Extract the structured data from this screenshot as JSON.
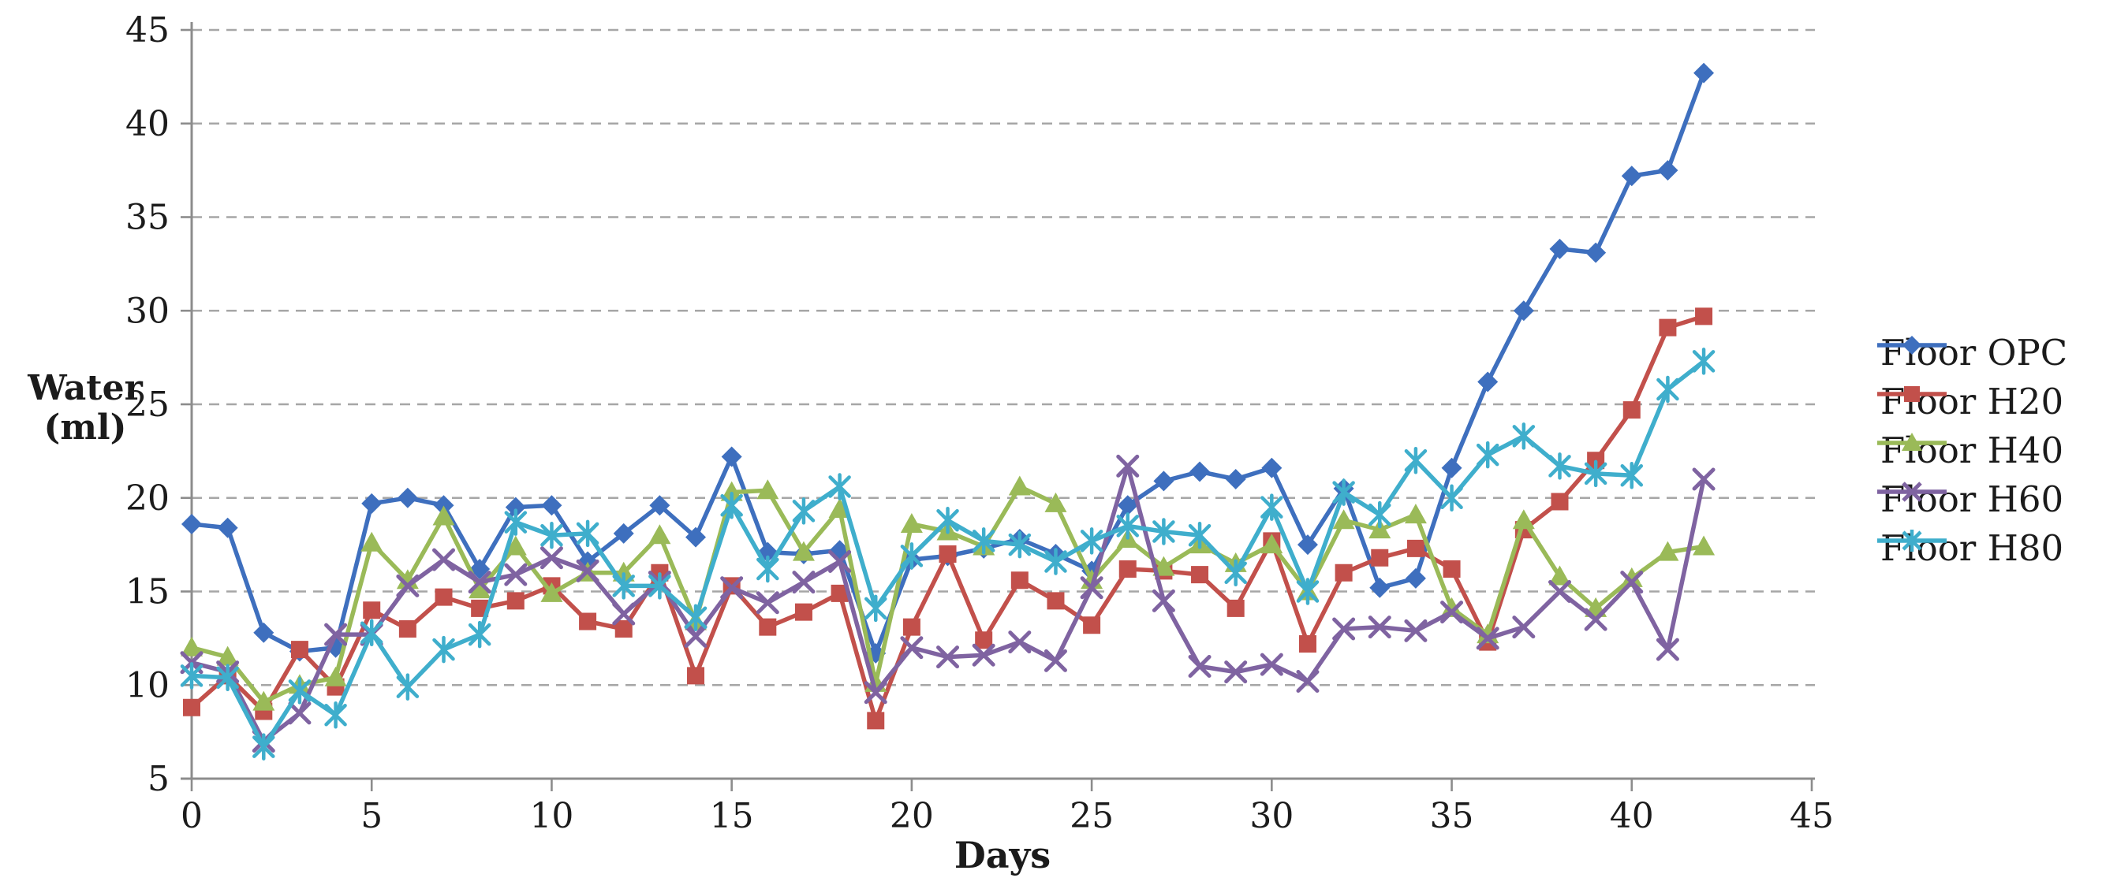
{
  "chart_data": {
    "type": "line",
    "title": "",
    "xlabel": "Days",
    "ylabel_line1": "Water",
    "ylabel_line2": "(ml)",
    "xlim": [
      0,
      45
    ],
    "ylim": [
      5,
      45
    ],
    "x_ticks": [
      0,
      5,
      10,
      15,
      20,
      25,
      30,
      35,
      40,
      45
    ],
    "y_ticks": [
      5,
      10,
      15,
      20,
      25,
      30,
      35,
      40,
      45
    ],
    "grid": "horizontal-dashed",
    "legend_position": "right",
    "axis_color": "#8c8c8c",
    "gridline_color": "#a6a6a6",
    "days": [
      0,
      1,
      2,
      3,
      4,
      5,
      6,
      7,
      8,
      9,
      10,
      11,
      12,
      13,
      14,
      15,
      16,
      17,
      18,
      19,
      20,
      21,
      22,
      23,
      24,
      25,
      26,
      27,
      28,
      29,
      30,
      31,
      32,
      33,
      34,
      35,
      36,
      37,
      38,
      39,
      40,
      41,
      42
    ],
    "series": [
      {
        "name": "Floor OPC",
        "color": "#3e6fbe",
        "marker": "diamond",
        "values": [
          18.6,
          18.4,
          12.8,
          11.8,
          12.0,
          19.7,
          20.0,
          19.6,
          16.2,
          19.5,
          19.6,
          16.6,
          18.1,
          19.6,
          17.9,
          22.2,
          17.1,
          17.0,
          17.2,
          11.7,
          16.7,
          16.9,
          17.3,
          17.8,
          17.0,
          16.1,
          19.6,
          20.9,
          21.4,
          21.0,
          21.6,
          17.5,
          20.5,
          15.2,
          15.7,
          21.6,
          26.2,
          30.0,
          33.3,
          33.1,
          37.2,
          37.5,
          42.7
        ]
      },
      {
        "name": "Floor H20",
        "color": "#c2504b",
        "marker": "square",
        "values": [
          8.8,
          10.5,
          8.6,
          11.9,
          9.9,
          14.0,
          13.0,
          14.7,
          14.1,
          14.5,
          15.3,
          13.4,
          13.0,
          16.0,
          10.5,
          15.3,
          13.1,
          13.9,
          14.9,
          8.1,
          13.1,
          17.0,
          12.4,
          15.6,
          14.5,
          13.2,
          16.2,
          16.1,
          15.9,
          14.1,
          17.7,
          12.2,
          16.0,
          16.8,
          17.3,
          16.2,
          12.3,
          18.3,
          19.8,
          22.0,
          24.7,
          29.1,
          29.7
        ]
      },
      {
        "name": "Floor H40",
        "color": "#9aba58",
        "marker": "triangle",
        "values": [
          12.0,
          11.5,
          9.1,
          10.0,
          10.4,
          17.6,
          15.6,
          19.0,
          15.1,
          17.4,
          14.9,
          16.0,
          16.0,
          18.0,
          13.4,
          20.3,
          20.4,
          17.1,
          19.4,
          10.1,
          18.6,
          18.2,
          17.4,
          20.6,
          19.7,
          15.6,
          17.8,
          16.3,
          17.5,
          16.5,
          17.5,
          15.0,
          18.8,
          18.3,
          19.1,
          14.1,
          12.7,
          18.8,
          15.8,
          14.1,
          15.7,
          17.1,
          17.4
        ]
      },
      {
        "name": "Floor H60",
        "color": "#7f63a1",
        "marker": "x",
        "values": [
          11.2,
          10.7,
          7.0,
          8.5,
          12.7,
          12.7,
          15.3,
          16.7,
          15.5,
          15.9,
          16.8,
          16.1,
          13.8,
          15.5,
          12.6,
          15.2,
          14.4,
          15.5,
          16.6,
          9.6,
          12.0,
          11.5,
          11.6,
          12.3,
          11.3,
          15.2,
          21.7,
          14.5,
          11.0,
          10.7,
          11.1,
          10.2,
          13.0,
          13.1,
          12.9,
          13.9,
          12.5,
          13.1,
          15.0,
          13.5,
          15.5,
          11.9,
          21.0
        ]
      },
      {
        "name": "Floor H80",
        "color": "#3faecc",
        "marker": "asterisk",
        "values": [
          10.5,
          10.4,
          6.7,
          9.7,
          8.4,
          12.8,
          9.9,
          11.9,
          12.7,
          18.7,
          18.0,
          18.1,
          15.3,
          15.3,
          13.6,
          19.6,
          16.2,
          19.3,
          20.6,
          14.1,
          16.9,
          18.8,
          17.7,
          17.5,
          16.6,
          17.7,
          18.5,
          18.2,
          18.0,
          16.0,
          19.5,
          15.0,
          20.3,
          19.1,
          22.0,
          20.0,
          22.3,
          23.3,
          21.7,
          21.3,
          21.2,
          25.8,
          27.3
        ]
      }
    ]
  }
}
